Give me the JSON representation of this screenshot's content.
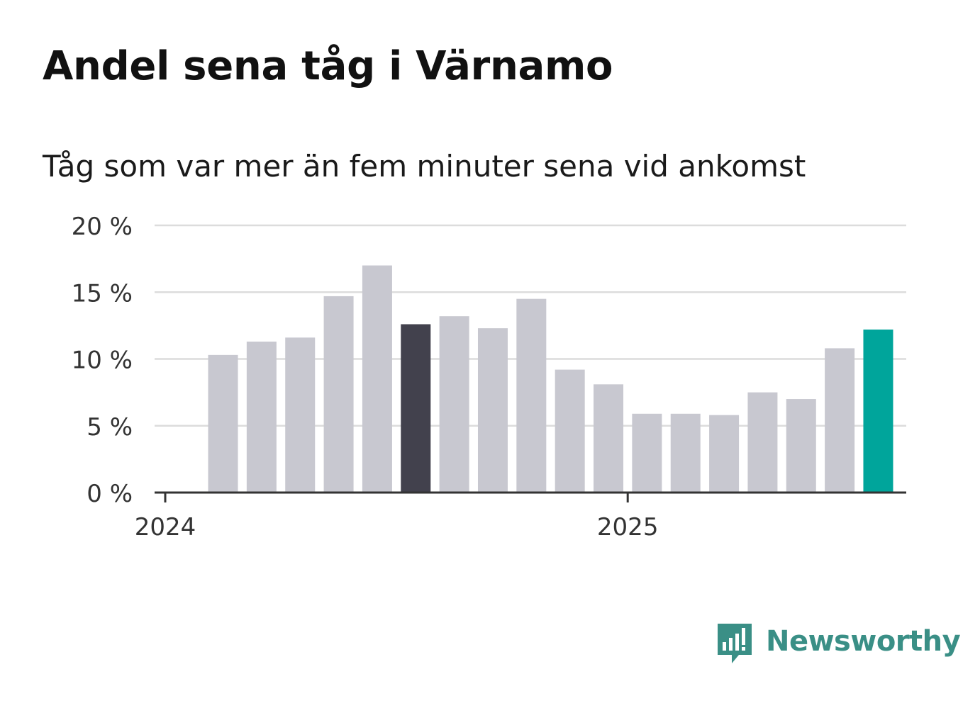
{
  "header": {
    "title": "Andel sena tåg i Värnamo",
    "subtitle": "Tåg som var mer än fem minuter sena vid ankomst"
  },
  "brand": {
    "name": "Newsworthy",
    "color": "#3a8f86",
    "icon": "newsworthy-logo-icon"
  },
  "colors": {
    "bar": "#c8c8d0",
    "highlight": "#42414d",
    "latest": "#00a59b",
    "grid": "#dcdcdc",
    "axis": "#333333"
  },
  "chart_data": {
    "type": "bar",
    "categories": [
      "2024-02",
      "2024-03",
      "2024-04",
      "2024-05",
      "2024-06",
      "2024-07",
      "2024-08",
      "2024-09",
      "2024-10",
      "2024-11",
      "2024-12",
      "2025-01",
      "2025-02",
      "2025-03",
      "2025-04",
      "2025-05",
      "2025-06",
      "2025-07"
    ],
    "values": [
      10.3,
      11.3,
      11.6,
      14.7,
      17.0,
      12.6,
      13.2,
      12.3,
      14.5,
      9.2,
      8.1,
      5.9,
      5.9,
      5.8,
      7.5,
      7.0,
      10.8,
      12.2
    ],
    "highlight": {
      "2024-07": "dark",
      "2025-07": "latest"
    },
    "ylim": [
      0,
      20
    ],
    "yticks": [
      0,
      5,
      10,
      15,
      20
    ],
    "ytick_labels": [
      "0 %",
      "5 %",
      "10 %",
      "15 %",
      "20 %"
    ],
    "xtick_labels": [
      {
        "at": "2024-01",
        "label": "2024"
      },
      {
        "at": "2025-01",
        "label": "2025"
      }
    ],
    "grid": true,
    "xlabel": "",
    "ylabel": ""
  }
}
